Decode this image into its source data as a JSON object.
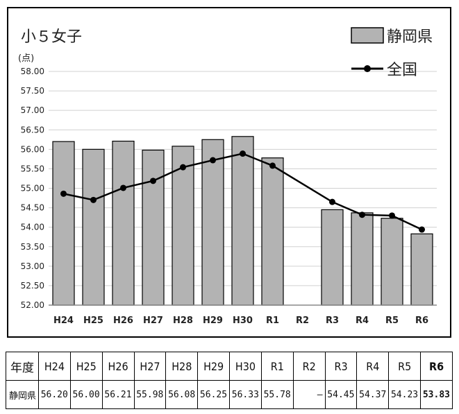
{
  "chart_data": {
    "type": "bar",
    "title": "小５女子",
    "ylabel": "(点)",
    "ylim": [
      52.0,
      58.0
    ],
    "ytick_step": 0.5,
    "categories": [
      "H24",
      "H25",
      "H26",
      "H27",
      "H28",
      "H29",
      "H30",
      "R1",
      "R2",
      "R3",
      "R4",
      "R5",
      "R6"
    ],
    "legend_placement": "top-right",
    "grid": true,
    "series": [
      {
        "name": "静岡県",
        "type": "bar",
        "color": "#b3b3b3",
        "values": [
          56.2,
          56.0,
          56.21,
          55.98,
          56.08,
          56.25,
          56.33,
          55.78,
          null,
          54.45,
          54.37,
          54.23,
          53.83
        ]
      },
      {
        "name": "全国",
        "type": "line",
        "color": "#000000",
        "values": [
          54.86,
          54.7,
          55.01,
          55.19,
          55.54,
          55.72,
          55.89,
          55.58,
          null,
          54.65,
          54.32,
          54.3,
          53.94
        ]
      }
    ]
  },
  "table": {
    "header_label": "年度",
    "row_label": "静岡県",
    "years": [
      "H24",
      "H25",
      "H26",
      "H27",
      "H28",
      "H29",
      "H30",
      "R1",
      "R2",
      "R3",
      "R4",
      "R5",
      "R6"
    ],
    "values": [
      "56.20",
      "56.00",
      "56.21",
      "55.98",
      "56.08",
      "56.25",
      "56.33",
      "55.78",
      "―",
      "54.45",
      "54.37",
      "54.23",
      "53.83"
    ]
  }
}
